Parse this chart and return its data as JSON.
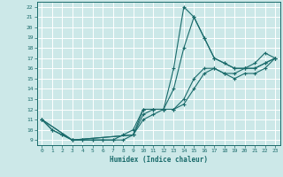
{
  "xlabel": "Humidex (Indice chaleur)",
  "bg_color": "#cce8e8",
  "grid_color": "#ffffff",
  "line_color": "#1a6b6b",
  "xlim": [
    -0.5,
    23.5
  ],
  "ylim": [
    8.5,
    22.5
  ],
  "xticks": [
    0,
    1,
    2,
    3,
    4,
    5,
    6,
    7,
    8,
    9,
    10,
    11,
    12,
    13,
    14,
    15,
    16,
    17,
    18,
    19,
    20,
    21,
    22,
    23
  ],
  "yticks": [
    9,
    10,
    11,
    12,
    13,
    14,
    15,
    16,
    17,
    18,
    19,
    20,
    21,
    22
  ],
  "line1_x": [
    0,
    1,
    2,
    3,
    4,
    5,
    6,
    7,
    8,
    9,
    10,
    11,
    12,
    13,
    14,
    15,
    16,
    17,
    18,
    19,
    20,
    21,
    22,
    23
  ],
  "line1_y": [
    11,
    10,
    9.5,
    9,
    9,
    9,
    9,
    9,
    9.5,
    10,
    12,
    12,
    12,
    16,
    22,
    21,
    19,
    17,
    16.5,
    16,
    16,
    16.5,
    17.5,
    17
  ],
  "line2_x": [
    0,
    1,
    2,
    3,
    4,
    5,
    6,
    7,
    8,
    9,
    10,
    11,
    12,
    13,
    14,
    15,
    16,
    17,
    18,
    19,
    20,
    21,
    22,
    23
  ],
  "line2_y": [
    11,
    10,
    9.5,
    9,
    9,
    9,
    9,
    9,
    9,
    9.5,
    11,
    11.5,
    12,
    14,
    18,
    21,
    19,
    17,
    16.5,
    16,
    16,
    16,
    16.5,
    17
  ],
  "line3_x": [
    0,
    3,
    9,
    10,
    11,
    12,
    13,
    14,
    15,
    16,
    17,
    18,
    19,
    20,
    21,
    22,
    23
  ],
  "line3_y": [
    11,
    9,
    9.5,
    12,
    12,
    12,
    12,
    13,
    15,
    16,
    16,
    15.5,
    15.5,
    16,
    16,
    16.5,
    17
  ],
  "line4_x": [
    0,
    3,
    9,
    10,
    11,
    12,
    13,
    14,
    15,
    16,
    17,
    18,
    19,
    20,
    21,
    22,
    23
  ],
  "line4_y": [
    11,
    9,
    9.5,
    11.5,
    12,
    12,
    12,
    12.5,
    14,
    15.5,
    16,
    15.5,
    15,
    15.5,
    15.5,
    16,
    17
  ]
}
